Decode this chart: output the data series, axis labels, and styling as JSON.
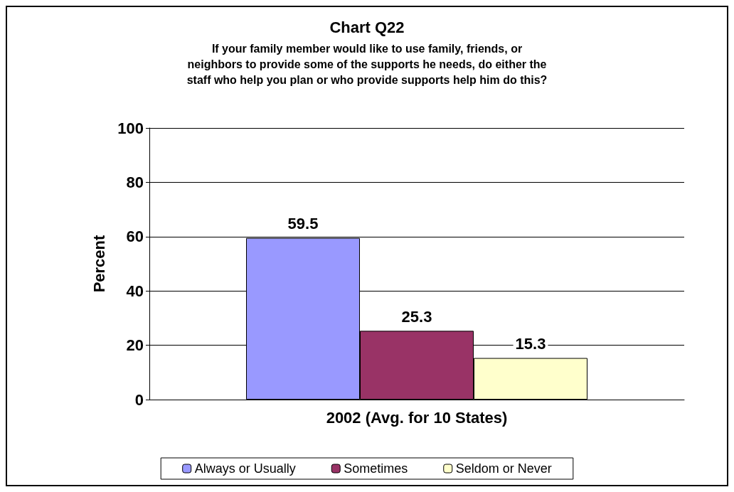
{
  "chart_data": {
    "type": "bar",
    "title": "Chart Q22",
    "subtitle": "If your family member would like to use family, friends, or\nneighbors to provide some of the supports he needs, do either the\nstaff who help you plan or who provide supports help him do this?",
    "ylabel": "Percent",
    "categories": [
      "2002 (Avg. for 10 States)"
    ],
    "series": [
      {
        "name": "Always or Usually",
        "color": "#9999ff",
        "values": [
          59.5
        ]
      },
      {
        "name": "Sometimes",
        "color": "#993366",
        "values": [
          25.3
        ]
      },
      {
        "name": "Seldom or Never",
        "color": "#ffffcc",
        "values": [
          15.3
        ]
      }
    ],
    "ylim": [
      0,
      100
    ],
    "yticks": [
      0,
      20,
      40,
      60,
      80,
      100
    ],
    "grid": "y",
    "legend": "bottom",
    "data_labels": true
  }
}
